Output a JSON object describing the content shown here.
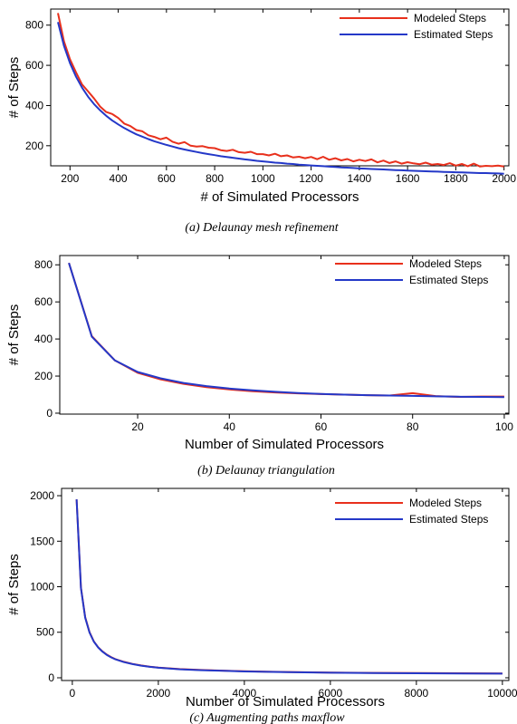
{
  "colors": {
    "modeled": "#e8301c",
    "estimated": "#2438c8"
  },
  "chart_data": [
    {
      "type": "line",
      "caption": "(a) Delaunay mesh refinement",
      "xlabel": "# of Simulated Processors",
      "ylabel": "# of Steps",
      "xlim": [
        120,
        2020
      ],
      "ylim": [
        100,
        880
      ],
      "xticks": [
        200,
        400,
        600,
        800,
        1000,
        1200,
        1400,
        1600,
        1800,
        2000
      ],
      "yticks": [
        200,
        400,
        600,
        800
      ],
      "legend_position": "top-right",
      "series": [
        {
          "name": "Modeled Steps",
          "x": [
            150,
            175,
            200,
            225,
            250,
            275,
            300,
            325,
            350,
            375,
            400,
            425,
            450,
            475,
            500,
            525,
            550,
            575,
            600,
            625,
            650,
            675,
            700,
            725,
            750,
            775,
            800,
            825,
            850,
            875,
            900,
            925,
            950,
            975,
            1000,
            1025,
            1050,
            1075,
            1100,
            1125,
            1150,
            1175,
            1200,
            1225,
            1250,
            1275,
            1300,
            1325,
            1350,
            1375,
            1400,
            1425,
            1450,
            1475,
            1500,
            1525,
            1550,
            1575,
            1600,
            1625,
            1650,
            1675,
            1700,
            1725,
            1750,
            1775,
            1800,
            1825,
            1850,
            1875,
            1900,
            1925,
            1950,
            1975,
            2000
          ],
          "y": [
            860,
            720,
            630,
            565,
            505,
            470,
            435,
            395,
            368,
            358,
            338,
            310,
            298,
            278,
            272,
            252,
            244,
            232,
            240,
            220,
            210,
            218,
            200,
            196,
            198,
            190,
            188,
            178,
            174,
            180,
            168,
            165,
            170,
            158,
            158,
            152,
            160,
            148,
            152,
            142,
            145,
            138,
            144,
            133,
            145,
            130,
            138,
            127,
            134,
            122,
            130,
            124,
            132,
            117,
            126,
            114,
            122,
            111,
            118,
            112,
            108,
            116,
            106,
            109,
            104,
            113,
            101,
            109,
            98,
            111,
            97,
            100,
            98,
            101,
            97
          ]
        },
        {
          "name": "Estimated Steps",
          "x": [
            150,
            175,
            200,
            225,
            250,
            275,
            300,
            325,
            350,
            375,
            400,
            425,
            450,
            475,
            500,
            525,
            550,
            575,
            600,
            625,
            650,
            675,
            700,
            725,
            750,
            775,
            800,
            825,
            850,
            875,
            900,
            925,
            950,
            975,
            1000,
            1025,
            1050,
            1075,
            1100,
            1125,
            1150,
            1175,
            1200,
            1225,
            1250,
            1275,
            1300,
            1325,
            1350,
            1375,
            1400,
            1425,
            1450,
            1475,
            1500,
            1525,
            1550,
            1575,
            1600,
            1625,
            1650,
            1675,
            1700,
            1725,
            1750,
            1775,
            1800,
            1825,
            1850,
            1875,
            1900,
            1925,
            1950,
            1975,
            2000
          ],
          "y": [
            815,
            698,
            611,
            543,
            489,
            444,
            407,
            376,
            349,
            326,
            306,
            288,
            272,
            257,
            245,
            233,
            222,
            213,
            204,
            196,
            188,
            181,
            175,
            169,
            163,
            158,
            153,
            148,
            144,
            140,
            136,
            132,
            129,
            125,
            122,
            119,
            116,
            114,
            111,
            109,
            106,
            104,
            102,
            100,
            98,
            96,
            94,
            92,
            91,
            89,
            87,
            86,
            84,
            83,
            82,
            80,
            79,
            78,
            76,
            75,
            74,
            73,
            72,
            71,
            70,
            69,
            68,
            67,
            66,
            65,
            64,
            64,
            63,
            62,
            61
          ]
        }
      ]
    },
    {
      "type": "line",
      "caption": "(b) Delaunay triangulation",
      "xlabel": "Number of Simulated Processors",
      "ylabel": "# of Steps",
      "xlim": [
        3,
        101
      ],
      "ylim": [
        -5,
        850
      ],
      "xticks": [
        20,
        40,
        60,
        80,
        100
      ],
      "yticks": [
        0,
        200,
        400,
        600,
        800
      ],
      "legend_position": "top-right",
      "series": [
        {
          "name": "Modeled Steps",
          "x": [
            5,
            10,
            15,
            20,
            25,
            30,
            35,
            40,
            45,
            50,
            55,
            60,
            65,
            70,
            75,
            80,
            85,
            90,
            95,
            100
          ],
          "y": [
            810,
            415,
            285,
            218,
            182,
            158,
            140,
            128,
            118,
            112,
            107,
            103,
            100,
            97,
            95,
            108,
            92,
            88,
            90,
            90
          ]
        },
        {
          "name": "Estimated Steps",
          "x": [
            5,
            10,
            15,
            20,
            25,
            30,
            35,
            40,
            45,
            50,
            55,
            60,
            65,
            70,
            75,
            80,
            85,
            90,
            95,
            100
          ],
          "y": [
            810,
            412,
            285,
            222,
            188,
            163,
            146,
            133,
            123,
            115,
            109,
            104,
            100,
            97,
            95,
            93,
            91,
            89,
            88,
            87
          ]
        }
      ]
    },
    {
      "type": "line",
      "caption": "(c) Augmenting paths maxflow",
      "xlabel": "Number of Simulated Processors",
      "ylabel": "# of Steps",
      "xlim": [
        -250,
        10150
      ],
      "ylim": [
        -30,
        2080
      ],
      "xticks": [
        0,
        2000,
        4000,
        6000,
        8000,
        10000
      ],
      "yticks": [
        0,
        500,
        1000,
        1500,
        2000
      ],
      "legend_position": "top-right",
      "series": [
        {
          "name": "Modeled Steps",
          "x": [
            100,
            200,
            300,
            400,
            500,
            600,
            700,
            800,
            900,
            1000,
            1200,
            1400,
            1600,
            1800,
            2000,
            2500,
            3000,
            3500,
            4000,
            4500,
            5000,
            6000,
            7000,
            8000,
            9000,
            10000
          ],
          "y": [
            1960,
            990,
            665,
            500,
            400,
            335,
            290,
            255,
            228,
            205,
            175,
            152,
            135,
            122,
            112,
            95,
            85,
            78,
            72,
            68,
            64,
            58,
            54,
            52,
            50,
            48
          ]
        },
        {
          "name": "Estimated Steps",
          "x": [
            100,
            200,
            300,
            400,
            500,
            600,
            700,
            800,
            900,
            1000,
            1200,
            1400,
            1600,
            1800,
            2000,
            2500,
            3000,
            3500,
            4000,
            4500,
            5000,
            6000,
            7000,
            8000,
            9000,
            10000
          ],
          "y": [
            1960,
            985,
            660,
            497,
            398,
            333,
            287,
            252,
            225,
            203,
            172,
            150,
            133,
            120,
            110,
            93,
            83,
            76,
            70,
            66,
            62,
            56,
            52,
            50,
            48,
            46
          ]
        }
      ]
    }
  ]
}
